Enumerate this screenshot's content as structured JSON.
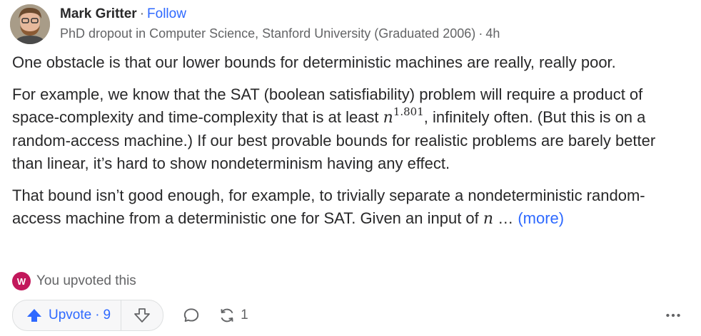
{
  "author": {
    "name": "Mark Gritter",
    "follow_label": "Follow",
    "credential": "PhD dropout in Computer Science, Stanford University (Graduated 2006)",
    "time": "4h"
  },
  "answer": {
    "p1": "One obstacle is that our lower bounds for deterministic machines are really, really poor.",
    "p2_before": "For example, we know that the SAT (boolean satisfiability) problem will require a product of space-complexity and time-complexity that is at least ",
    "p2_math_base": "n",
    "p2_math_exp": "1.801",
    "p2_after": ", infinitely often. (But this is on a random-access machine.) If our best provable bounds for realistic problems are barely better than linear, it’s hard to show nondeterminism having any effect.",
    "p3_before": "That bound isn’t good enough, for example, to trivially separate a nondeterministic random-access machine from a deterministic one for SAT. Given an input of ",
    "p3_math": "n",
    "p3_ellipsis": " …",
    "more_label": "(more)"
  },
  "upvoted": {
    "badge_letter": "W",
    "text": "You upvoted this"
  },
  "actions": {
    "upvote_label": "Upvote",
    "upvote_separator": "·",
    "upvote_count": "9",
    "share_count": "1"
  },
  "colors": {
    "accent": "#2e69ff",
    "secondary_text": "#636466",
    "badge": "#c2185b"
  },
  "icons": [
    "upvote-arrow-icon",
    "downvote-arrow-icon",
    "comment-icon",
    "share-icon",
    "more-options-icon"
  ]
}
